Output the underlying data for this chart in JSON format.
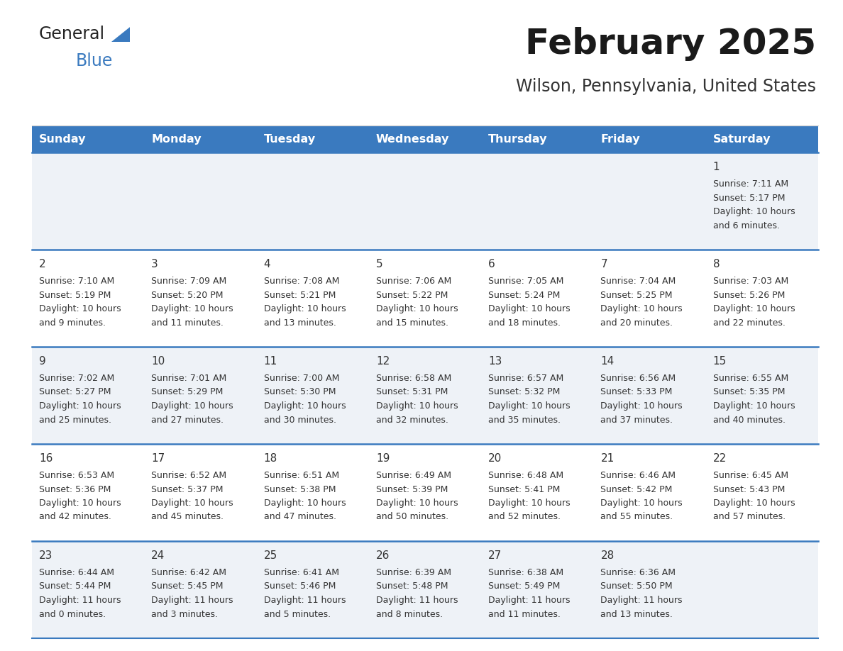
{
  "title": "February 2025",
  "subtitle": "Wilson, Pennsylvania, United States",
  "header_bg": "#3a7abf",
  "header_text_color": "#ffffff",
  "cell_bg_even": "#eef2f7",
  "cell_bg_odd": "#ffffff",
  "divider_color": "#3a7abf",
  "text_color": "#333333",
  "day_number_color": "#333333",
  "days_of_week": [
    "Sunday",
    "Monday",
    "Tuesday",
    "Wednesday",
    "Thursday",
    "Friday",
    "Saturday"
  ],
  "logo_general_color": "#222222",
  "logo_blue_color": "#3a7abf",
  "logo_triangle_color": "#3a7abf",
  "weeks": [
    [
      {
        "day": null,
        "sunrise": null,
        "sunset": null,
        "daylight_line1": null,
        "daylight_line2": null
      },
      {
        "day": null,
        "sunrise": null,
        "sunset": null,
        "daylight_line1": null,
        "daylight_line2": null
      },
      {
        "day": null,
        "sunrise": null,
        "sunset": null,
        "daylight_line1": null,
        "daylight_line2": null
      },
      {
        "day": null,
        "sunrise": null,
        "sunset": null,
        "daylight_line1": null,
        "daylight_line2": null
      },
      {
        "day": null,
        "sunrise": null,
        "sunset": null,
        "daylight_line1": null,
        "daylight_line2": null
      },
      {
        "day": null,
        "sunrise": null,
        "sunset": null,
        "daylight_line1": null,
        "daylight_line2": null
      },
      {
        "day": "1",
        "sunrise": "Sunrise: 7:11 AM",
        "sunset": "Sunset: 5:17 PM",
        "daylight_line1": "Daylight: 10 hours",
        "daylight_line2": "and 6 minutes."
      }
    ],
    [
      {
        "day": "2",
        "sunrise": "Sunrise: 7:10 AM",
        "sunset": "Sunset: 5:19 PM",
        "daylight_line1": "Daylight: 10 hours",
        "daylight_line2": "and 9 minutes."
      },
      {
        "day": "3",
        "sunrise": "Sunrise: 7:09 AM",
        "sunset": "Sunset: 5:20 PM",
        "daylight_line1": "Daylight: 10 hours",
        "daylight_line2": "and 11 minutes."
      },
      {
        "day": "4",
        "sunrise": "Sunrise: 7:08 AM",
        "sunset": "Sunset: 5:21 PM",
        "daylight_line1": "Daylight: 10 hours",
        "daylight_line2": "and 13 minutes."
      },
      {
        "day": "5",
        "sunrise": "Sunrise: 7:06 AM",
        "sunset": "Sunset: 5:22 PM",
        "daylight_line1": "Daylight: 10 hours",
        "daylight_line2": "and 15 minutes."
      },
      {
        "day": "6",
        "sunrise": "Sunrise: 7:05 AM",
        "sunset": "Sunset: 5:24 PM",
        "daylight_line1": "Daylight: 10 hours",
        "daylight_line2": "and 18 minutes."
      },
      {
        "day": "7",
        "sunrise": "Sunrise: 7:04 AM",
        "sunset": "Sunset: 5:25 PM",
        "daylight_line1": "Daylight: 10 hours",
        "daylight_line2": "and 20 minutes."
      },
      {
        "day": "8",
        "sunrise": "Sunrise: 7:03 AM",
        "sunset": "Sunset: 5:26 PM",
        "daylight_line1": "Daylight: 10 hours",
        "daylight_line2": "and 22 minutes."
      }
    ],
    [
      {
        "day": "9",
        "sunrise": "Sunrise: 7:02 AM",
        "sunset": "Sunset: 5:27 PM",
        "daylight_line1": "Daylight: 10 hours",
        "daylight_line2": "and 25 minutes."
      },
      {
        "day": "10",
        "sunrise": "Sunrise: 7:01 AM",
        "sunset": "Sunset: 5:29 PM",
        "daylight_line1": "Daylight: 10 hours",
        "daylight_line2": "and 27 minutes."
      },
      {
        "day": "11",
        "sunrise": "Sunrise: 7:00 AM",
        "sunset": "Sunset: 5:30 PM",
        "daylight_line1": "Daylight: 10 hours",
        "daylight_line2": "and 30 minutes."
      },
      {
        "day": "12",
        "sunrise": "Sunrise: 6:58 AM",
        "sunset": "Sunset: 5:31 PM",
        "daylight_line1": "Daylight: 10 hours",
        "daylight_line2": "and 32 minutes."
      },
      {
        "day": "13",
        "sunrise": "Sunrise: 6:57 AM",
        "sunset": "Sunset: 5:32 PM",
        "daylight_line1": "Daylight: 10 hours",
        "daylight_line2": "and 35 minutes."
      },
      {
        "day": "14",
        "sunrise": "Sunrise: 6:56 AM",
        "sunset": "Sunset: 5:33 PM",
        "daylight_line1": "Daylight: 10 hours",
        "daylight_line2": "and 37 minutes."
      },
      {
        "day": "15",
        "sunrise": "Sunrise: 6:55 AM",
        "sunset": "Sunset: 5:35 PM",
        "daylight_line1": "Daylight: 10 hours",
        "daylight_line2": "and 40 minutes."
      }
    ],
    [
      {
        "day": "16",
        "sunrise": "Sunrise: 6:53 AM",
        "sunset": "Sunset: 5:36 PM",
        "daylight_line1": "Daylight: 10 hours",
        "daylight_line2": "and 42 minutes."
      },
      {
        "day": "17",
        "sunrise": "Sunrise: 6:52 AM",
        "sunset": "Sunset: 5:37 PM",
        "daylight_line1": "Daylight: 10 hours",
        "daylight_line2": "and 45 minutes."
      },
      {
        "day": "18",
        "sunrise": "Sunrise: 6:51 AM",
        "sunset": "Sunset: 5:38 PM",
        "daylight_line1": "Daylight: 10 hours",
        "daylight_line2": "and 47 minutes."
      },
      {
        "day": "19",
        "sunrise": "Sunrise: 6:49 AM",
        "sunset": "Sunset: 5:39 PM",
        "daylight_line1": "Daylight: 10 hours",
        "daylight_line2": "and 50 minutes."
      },
      {
        "day": "20",
        "sunrise": "Sunrise: 6:48 AM",
        "sunset": "Sunset: 5:41 PM",
        "daylight_line1": "Daylight: 10 hours",
        "daylight_line2": "and 52 minutes."
      },
      {
        "day": "21",
        "sunrise": "Sunrise: 6:46 AM",
        "sunset": "Sunset: 5:42 PM",
        "daylight_line1": "Daylight: 10 hours",
        "daylight_line2": "and 55 minutes."
      },
      {
        "day": "22",
        "sunrise": "Sunrise: 6:45 AM",
        "sunset": "Sunset: 5:43 PM",
        "daylight_line1": "Daylight: 10 hours",
        "daylight_line2": "and 57 minutes."
      }
    ],
    [
      {
        "day": "23",
        "sunrise": "Sunrise: 6:44 AM",
        "sunset": "Sunset: 5:44 PM",
        "daylight_line1": "Daylight: 11 hours",
        "daylight_line2": "and 0 minutes."
      },
      {
        "day": "24",
        "sunrise": "Sunrise: 6:42 AM",
        "sunset": "Sunset: 5:45 PM",
        "daylight_line1": "Daylight: 11 hours",
        "daylight_line2": "and 3 minutes."
      },
      {
        "day": "25",
        "sunrise": "Sunrise: 6:41 AM",
        "sunset": "Sunset: 5:46 PM",
        "daylight_line1": "Daylight: 11 hours",
        "daylight_line2": "and 5 minutes."
      },
      {
        "day": "26",
        "sunrise": "Sunrise: 6:39 AM",
        "sunset": "Sunset: 5:48 PM",
        "daylight_line1": "Daylight: 11 hours",
        "daylight_line2": "and 8 minutes."
      },
      {
        "day": "27",
        "sunrise": "Sunrise: 6:38 AM",
        "sunset": "Sunset: 5:49 PM",
        "daylight_line1": "Daylight: 11 hours",
        "daylight_line2": "and 11 minutes."
      },
      {
        "day": "28",
        "sunrise": "Sunrise: 6:36 AM",
        "sunset": "Sunset: 5:50 PM",
        "daylight_line1": "Daylight: 11 hours",
        "daylight_line2": "and 13 minutes."
      },
      {
        "day": null,
        "sunrise": null,
        "sunset": null,
        "daylight_line1": null,
        "daylight_line2": null
      }
    ]
  ],
  "fig_width": 11.88,
  "fig_height": 9.18,
  "dpi": 100
}
